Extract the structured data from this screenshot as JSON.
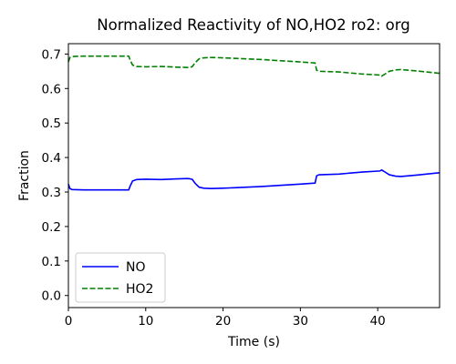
{
  "chart_data": {
    "type": "line",
    "title": "Normalized Reactivity of NO,HO2 ro2: org",
    "xlabel": "Time (s)",
    "ylabel": "Fraction",
    "xlim": [
      0,
      48
    ],
    "ylim": [
      -0.035,
      0.73
    ],
    "x_ticks": [
      0,
      10,
      20,
      30,
      40
    ],
    "y_ticks": [
      0.0,
      0.1,
      0.2,
      0.3,
      0.4,
      0.5,
      0.6,
      0.7
    ],
    "x_tick_labels": [
      "0",
      "10",
      "20",
      "30",
      "40"
    ],
    "y_tick_labels": [
      "0.0",
      "0.1",
      "0.2",
      "0.3",
      "0.4",
      "0.5",
      "0.6",
      "0.7"
    ],
    "grid": false,
    "legend": {
      "location": "lower-left",
      "entries": [
        "NO",
        "HO2"
      ]
    },
    "series": [
      {
        "name": "NO",
        "color": "#0000ff",
        "style": "solid",
        "points": [
          [
            0,
            0.323
          ],
          [
            0.2,
            0.31
          ],
          [
            0.5,
            0.307
          ],
          [
            2,
            0.306
          ],
          [
            5,
            0.306
          ],
          [
            7.8,
            0.306
          ],
          [
            8.0,
            0.318
          ],
          [
            8.3,
            0.332
          ],
          [
            8.8,
            0.336
          ],
          [
            10,
            0.337
          ],
          [
            12,
            0.336
          ],
          [
            14,
            0.338
          ],
          [
            15.5,
            0.339
          ],
          [
            16.0,
            0.337
          ],
          [
            16.4,
            0.325
          ],
          [
            16.9,
            0.314
          ],
          [
            17.5,
            0.311
          ],
          [
            18.5,
            0.31
          ],
          [
            20,
            0.311
          ],
          [
            25,
            0.316
          ],
          [
            30,
            0.323
          ],
          [
            31.9,
            0.326
          ],
          [
            32.1,
            0.347
          ],
          [
            32.4,
            0.35
          ],
          [
            35,
            0.352
          ],
          [
            38,
            0.358
          ],
          [
            40.3,
            0.361
          ],
          [
            40.5,
            0.364
          ],
          [
            40.8,
            0.36
          ],
          [
            41.5,
            0.35
          ],
          [
            42.3,
            0.346
          ],
          [
            43,
            0.345
          ],
          [
            45,
            0.349
          ],
          [
            48,
            0.356
          ]
        ]
      },
      {
        "name": "HO2",
        "color": "#008000",
        "style": "dashed",
        "points": [
          [
            0,
            0.677
          ],
          [
            0.2,
            0.69
          ],
          [
            0.5,
            0.693
          ],
          [
            2,
            0.694
          ],
          [
            5,
            0.694
          ],
          [
            7.8,
            0.694
          ],
          [
            8.0,
            0.682
          ],
          [
            8.3,
            0.668
          ],
          [
            8.8,
            0.664
          ],
          [
            10,
            0.663
          ],
          [
            12,
            0.664
          ],
          [
            14,
            0.662
          ],
          [
            15.5,
            0.661
          ],
          [
            16.0,
            0.663
          ],
          [
            16.4,
            0.675
          ],
          [
            16.9,
            0.686
          ],
          [
            17.5,
            0.689
          ],
          [
            18.5,
            0.69
          ],
          [
            20,
            0.689
          ],
          [
            25,
            0.684
          ],
          [
            30,
            0.677
          ],
          [
            31.9,
            0.674
          ],
          [
            32.1,
            0.653
          ],
          [
            32.4,
            0.65
          ],
          [
            35,
            0.648
          ],
          [
            38,
            0.642
          ],
          [
            40.3,
            0.639
          ],
          [
            40.5,
            0.636
          ],
          [
            40.8,
            0.64
          ],
          [
            41.5,
            0.65
          ],
          [
            42.3,
            0.654
          ],
          [
            43,
            0.655
          ],
          [
            45,
            0.651
          ],
          [
            48,
            0.644
          ]
        ]
      }
    ]
  }
}
